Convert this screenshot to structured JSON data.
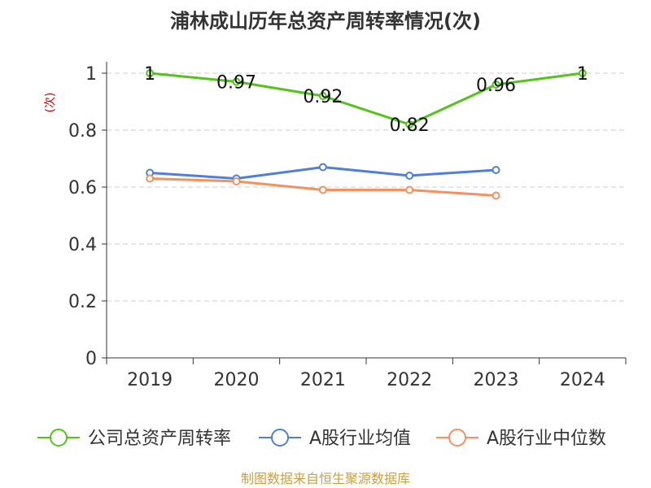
{
  "chart_data": {
    "type": "line",
    "title": "浦林成山历年总资产周转率情况(次)",
    "ylabel": "(次)",
    "xlabel": "",
    "categories": [
      "2019",
      "2020",
      "2021",
      "2022",
      "2023",
      "2024"
    ],
    "ylim": [
      0,
      1
    ],
    "yticks": [
      "0",
      "0.2",
      "0.4",
      "0.6",
      "0.8",
      "1"
    ],
    "grid": true,
    "legend_position": "bottom",
    "series": [
      {
        "name": "公司总资产周转率",
        "color": "#52c41a",
        "values": [
          1,
          0.97,
          0.92,
          0.82,
          0.96,
          1
        ],
        "labels": [
          "1",
          "0.97",
          "0.92",
          "0.82",
          "0.96",
          "1"
        ]
      },
      {
        "name": "A股行业均值",
        "color": "#4f7fdc",
        "values": [
          0.65,
          0.63,
          0.67,
          0.64,
          0.66,
          null
        ]
      },
      {
        "name": "A股行业中位数",
        "color": "#f4915e",
        "values": [
          0.63,
          0.62,
          0.59,
          0.59,
          0.57,
          null
        ]
      }
    ]
  },
  "source": "制图数据来自恒生聚源数据库"
}
